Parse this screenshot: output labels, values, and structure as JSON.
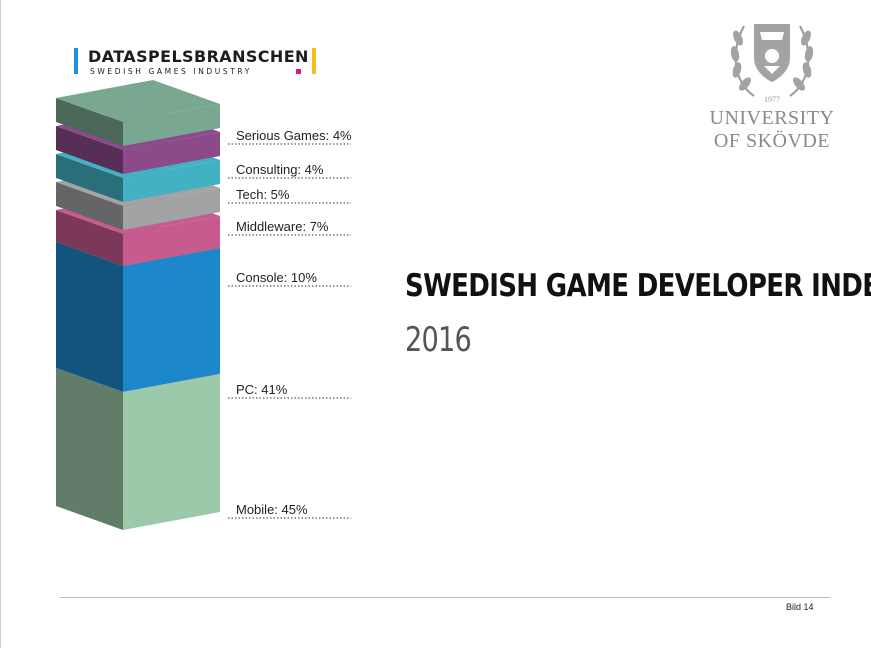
{
  "logo": {
    "name": "DATASPELSBRANSCHEN",
    "tagline": "SWEDISH GAMES INDUSTRY"
  },
  "university": {
    "line1": "UNIVERSITY",
    "line2": "OF SKÖVDE",
    "seal_year": "1977"
  },
  "title": "SWEDISH GAME DEVELOPER INDEX",
  "subtitle": "2016",
  "footer": {
    "slide_label": "Bild 14"
  },
  "colors": {
    "Mobile": "#9dc9ab",
    "PC": "#1d87cb",
    "Console": "#c85b8e",
    "Middleware": "#a2a3a5",
    "Tech": "#42b1c3",
    "Consulting": "#8d4a8a",
    "Serious Games": "#79a78f"
  },
  "chart_data": {
    "type": "bar",
    "style": "3d stacked column",
    "categories": [
      "Mobile",
      "PC",
      "Console",
      "Middleware",
      "Tech",
      "Consulting",
      "Serious Games"
    ],
    "values": [
      45,
      41,
      10,
      7,
      5,
      4,
      4
    ],
    "unit": "%",
    "labels": [
      "Mobile: 45%",
      "PC: 41%",
      "Console: 10%",
      "Middleware: 7%",
      "Tech: 5%",
      "Consulting: 4%",
      "Serious Games: 4%"
    ]
  }
}
